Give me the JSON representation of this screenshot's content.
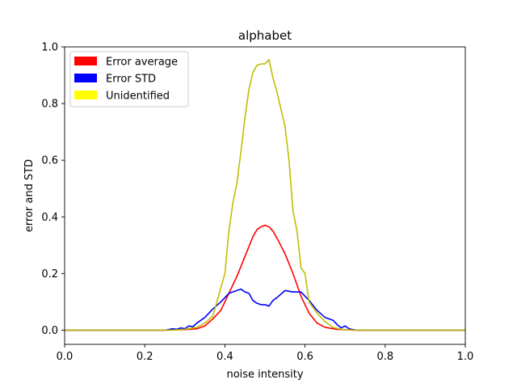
{
  "chart_data": {
    "type": "line",
    "title": "alphabet",
    "xlabel": "noise intensity",
    "ylabel": "error and STD",
    "xlim": [
      0.0,
      1.0
    ],
    "ylim": [
      -0.05,
      1.0
    ],
    "x_ticks": [
      0.0,
      0.2,
      0.4,
      0.6,
      0.8,
      1.0
    ],
    "x_tick_labels": [
      "0.0",
      "0.2",
      "0.4",
      "0.6",
      "0.8",
      "1.0"
    ],
    "y_ticks": [
      0.0,
      0.2,
      0.4,
      0.6,
      0.8,
      1.0
    ],
    "y_tick_labels": [
      "0.0",
      "0.2",
      "0.4",
      "0.6",
      "0.8",
      "1.0"
    ],
    "grid": false,
    "legend_position": "top-left",
    "legend_entries": [
      "Error average",
      "Error STD",
      "Unidentified"
    ],
    "series": [
      {
        "name": "Error average",
        "legend_color": "#ff0000",
        "line_color": "#ff0000",
        "x": [
          0.0,
          0.25,
          0.3,
          0.33,
          0.35,
          0.37,
          0.39,
          0.41,
          0.43,
          0.45,
          0.47,
          0.48,
          0.49,
          0.5,
          0.51,
          0.52,
          0.53,
          0.55,
          0.57,
          0.59,
          0.61,
          0.63,
          0.65,
          0.68,
          0.72,
          1.0
        ],
        "y": [
          0.0,
          0.0,
          0.002,
          0.005,
          0.015,
          0.04,
          0.07,
          0.13,
          0.19,
          0.26,
          0.33,
          0.355,
          0.365,
          0.37,
          0.365,
          0.35,
          0.325,
          0.27,
          0.2,
          0.12,
          0.06,
          0.025,
          0.01,
          0.003,
          0.0,
          0.0
        ]
      },
      {
        "name": "Error STD",
        "legend_color": "#0000ff",
        "line_color": "#0000ff",
        "x": [
          0.0,
          0.25,
          0.27,
          0.28,
          0.29,
          0.3,
          0.31,
          0.32,
          0.33,
          0.35,
          0.37,
          0.39,
          0.41,
          0.43,
          0.44,
          0.45,
          0.46,
          0.47,
          0.48,
          0.49,
          0.5,
          0.51,
          0.52,
          0.53,
          0.55,
          0.57,
          0.59,
          0.61,
          0.63,
          0.65,
          0.67,
          0.68,
          0.69,
          0.7,
          0.71,
          0.72,
          0.73,
          1.0
        ],
        "y": [
          0.0,
          0.0,
          0.005,
          0.003,
          0.008,
          0.005,
          0.015,
          0.012,
          0.025,
          0.045,
          0.075,
          0.1,
          0.13,
          0.14,
          0.145,
          0.135,
          0.13,
          0.105,
          0.095,
          0.09,
          0.09,
          0.085,
          0.105,
          0.115,
          0.14,
          0.135,
          0.135,
          0.105,
          0.07,
          0.045,
          0.035,
          0.02,
          0.008,
          0.015,
          0.005,
          0.002,
          0.0,
          0.0
        ]
      },
      {
        "name": "Unidentified",
        "legend_color": "#ffff00",
        "line_color": "#bfbf00",
        "x": [
          0.0,
          0.27,
          0.3,
          0.33,
          0.35,
          0.37,
          0.38,
          0.4,
          0.41,
          0.42,
          0.43,
          0.44,
          0.45,
          0.46,
          0.47,
          0.48,
          0.49,
          0.5,
          0.51,
          0.52,
          0.53,
          0.54,
          0.55,
          0.56,
          0.57,
          0.58,
          0.59,
          0.6,
          0.61,
          0.62,
          0.63,
          0.65,
          0.67,
          0.69,
          0.72,
          1.0
        ],
        "y": [
          0.0,
          0.0,
          0.003,
          0.01,
          0.025,
          0.05,
          0.1,
          0.2,
          0.35,
          0.45,
          0.52,
          0.63,
          0.75,
          0.85,
          0.91,
          0.935,
          0.94,
          0.94,
          0.955,
          0.89,
          0.84,
          0.78,
          0.72,
          0.6,
          0.42,
          0.35,
          0.22,
          0.2,
          0.1,
          0.08,
          0.06,
          0.03,
          0.01,
          0.003,
          0.0,
          0.0
        ]
      }
    ]
  }
}
